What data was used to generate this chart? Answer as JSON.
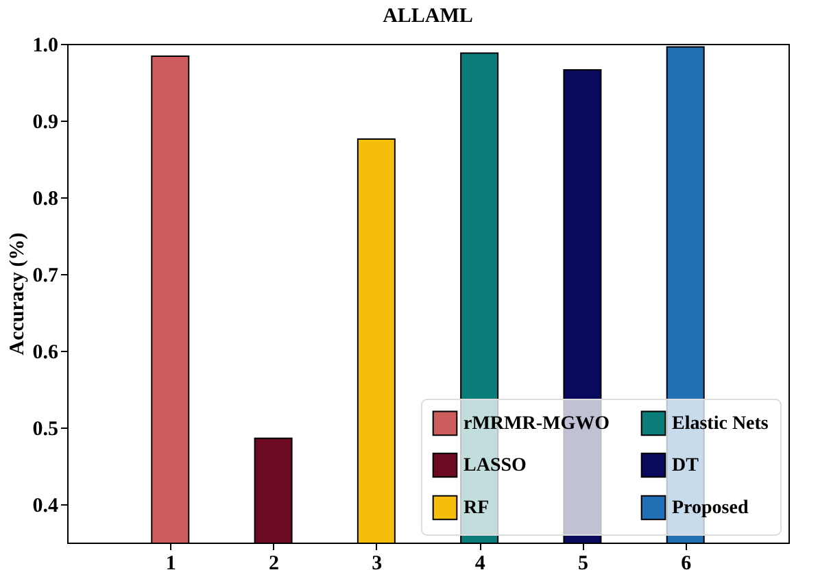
{
  "chart_data": {
    "type": "bar",
    "title": "ALLAML",
    "ylabel": "Accuracy (%)",
    "xlim": [
      0,
      7
    ],
    "xticks": [
      1,
      2,
      3,
      4,
      5,
      6
    ],
    "ylim": [
      0.35,
      1.0
    ],
    "yticks": [
      0.4,
      0.5,
      0.6,
      0.7,
      0.8,
      0.9,
      {
        "value": 1,
        "label": "1.0"
      }
    ],
    "series": [
      {
        "name": "rMRMR-MGWO",
        "color": "#cd5c5c",
        "x": [
          1
        ],
        "values": [
          0.984
        ]
      },
      {
        "name": "LASSO",
        "color": "#6b0a22",
        "x": [
          2
        ],
        "values": [
          0.486
        ]
      },
      {
        "name": "RF",
        "color": "#f5be0b",
        "x": [
          3
        ],
        "values": [
          0.876
        ]
      },
      {
        "name": "Elastic Nets",
        "color": "#0a7d7a",
        "x": [
          4
        ],
        "values": [
          0.988
        ]
      },
      {
        "name": "DT",
        "color": "#0a0a5c",
        "x": [
          5
        ],
        "values": [
          0.966
        ]
      },
      {
        "name": "Proposed",
        "color": "#2170b5",
        "x": [
          6
        ],
        "values": [
          0.996
        ]
      }
    ],
    "legend": "bottom right",
    "grid": false
  }
}
